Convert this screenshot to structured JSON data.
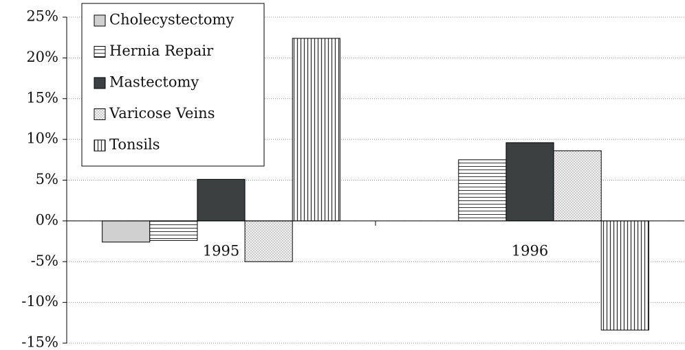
{
  "chart_data": {
    "type": "bar",
    "categories": [
      "1995",
      "1996"
    ],
    "series": [
      {
        "name": "Cholecystectomy",
        "color": "#d0d0d0",
        "pattern": "solid",
        "values": [
          -2.6,
          0
        ]
      },
      {
        "name": "Hernia Repair",
        "color": "#333333",
        "pattern": "horizontal-lines",
        "values": [
          -2.4,
          7.5
        ]
      },
      {
        "name": "Mastectomy",
        "color": "#3b4141",
        "pattern": "solid",
        "values": [
          5.1,
          9.6
        ]
      },
      {
        "name": "Varicose Veins",
        "color": "#555555",
        "pattern": "dots",
        "values": [
          -5.0,
          8.6
        ]
      },
      {
        "name": "Tonsils",
        "color": "#333333",
        "pattern": "vertical-lines",
        "values": [
          22.4,
          -13.4
        ]
      }
    ],
    "ylim": [
      -15,
      25
    ],
    "yticks": [
      {
        "value": -15,
        "label": "-15%"
      },
      {
        "value": -10,
        "label": "-10%"
      },
      {
        "value": -5,
        "label": "-5%"
      },
      {
        "value": 0,
        "label": "0%"
      },
      {
        "value": 5,
        "label": "5%"
      },
      {
        "value": 10,
        "label": "10%"
      },
      {
        "value": 15,
        "label": "15%"
      },
      {
        "value": 20,
        "label": "20%"
      },
      {
        "value": 25,
        "label": "25%"
      }
    ],
    "grid": true,
    "legend": "upper left"
  }
}
